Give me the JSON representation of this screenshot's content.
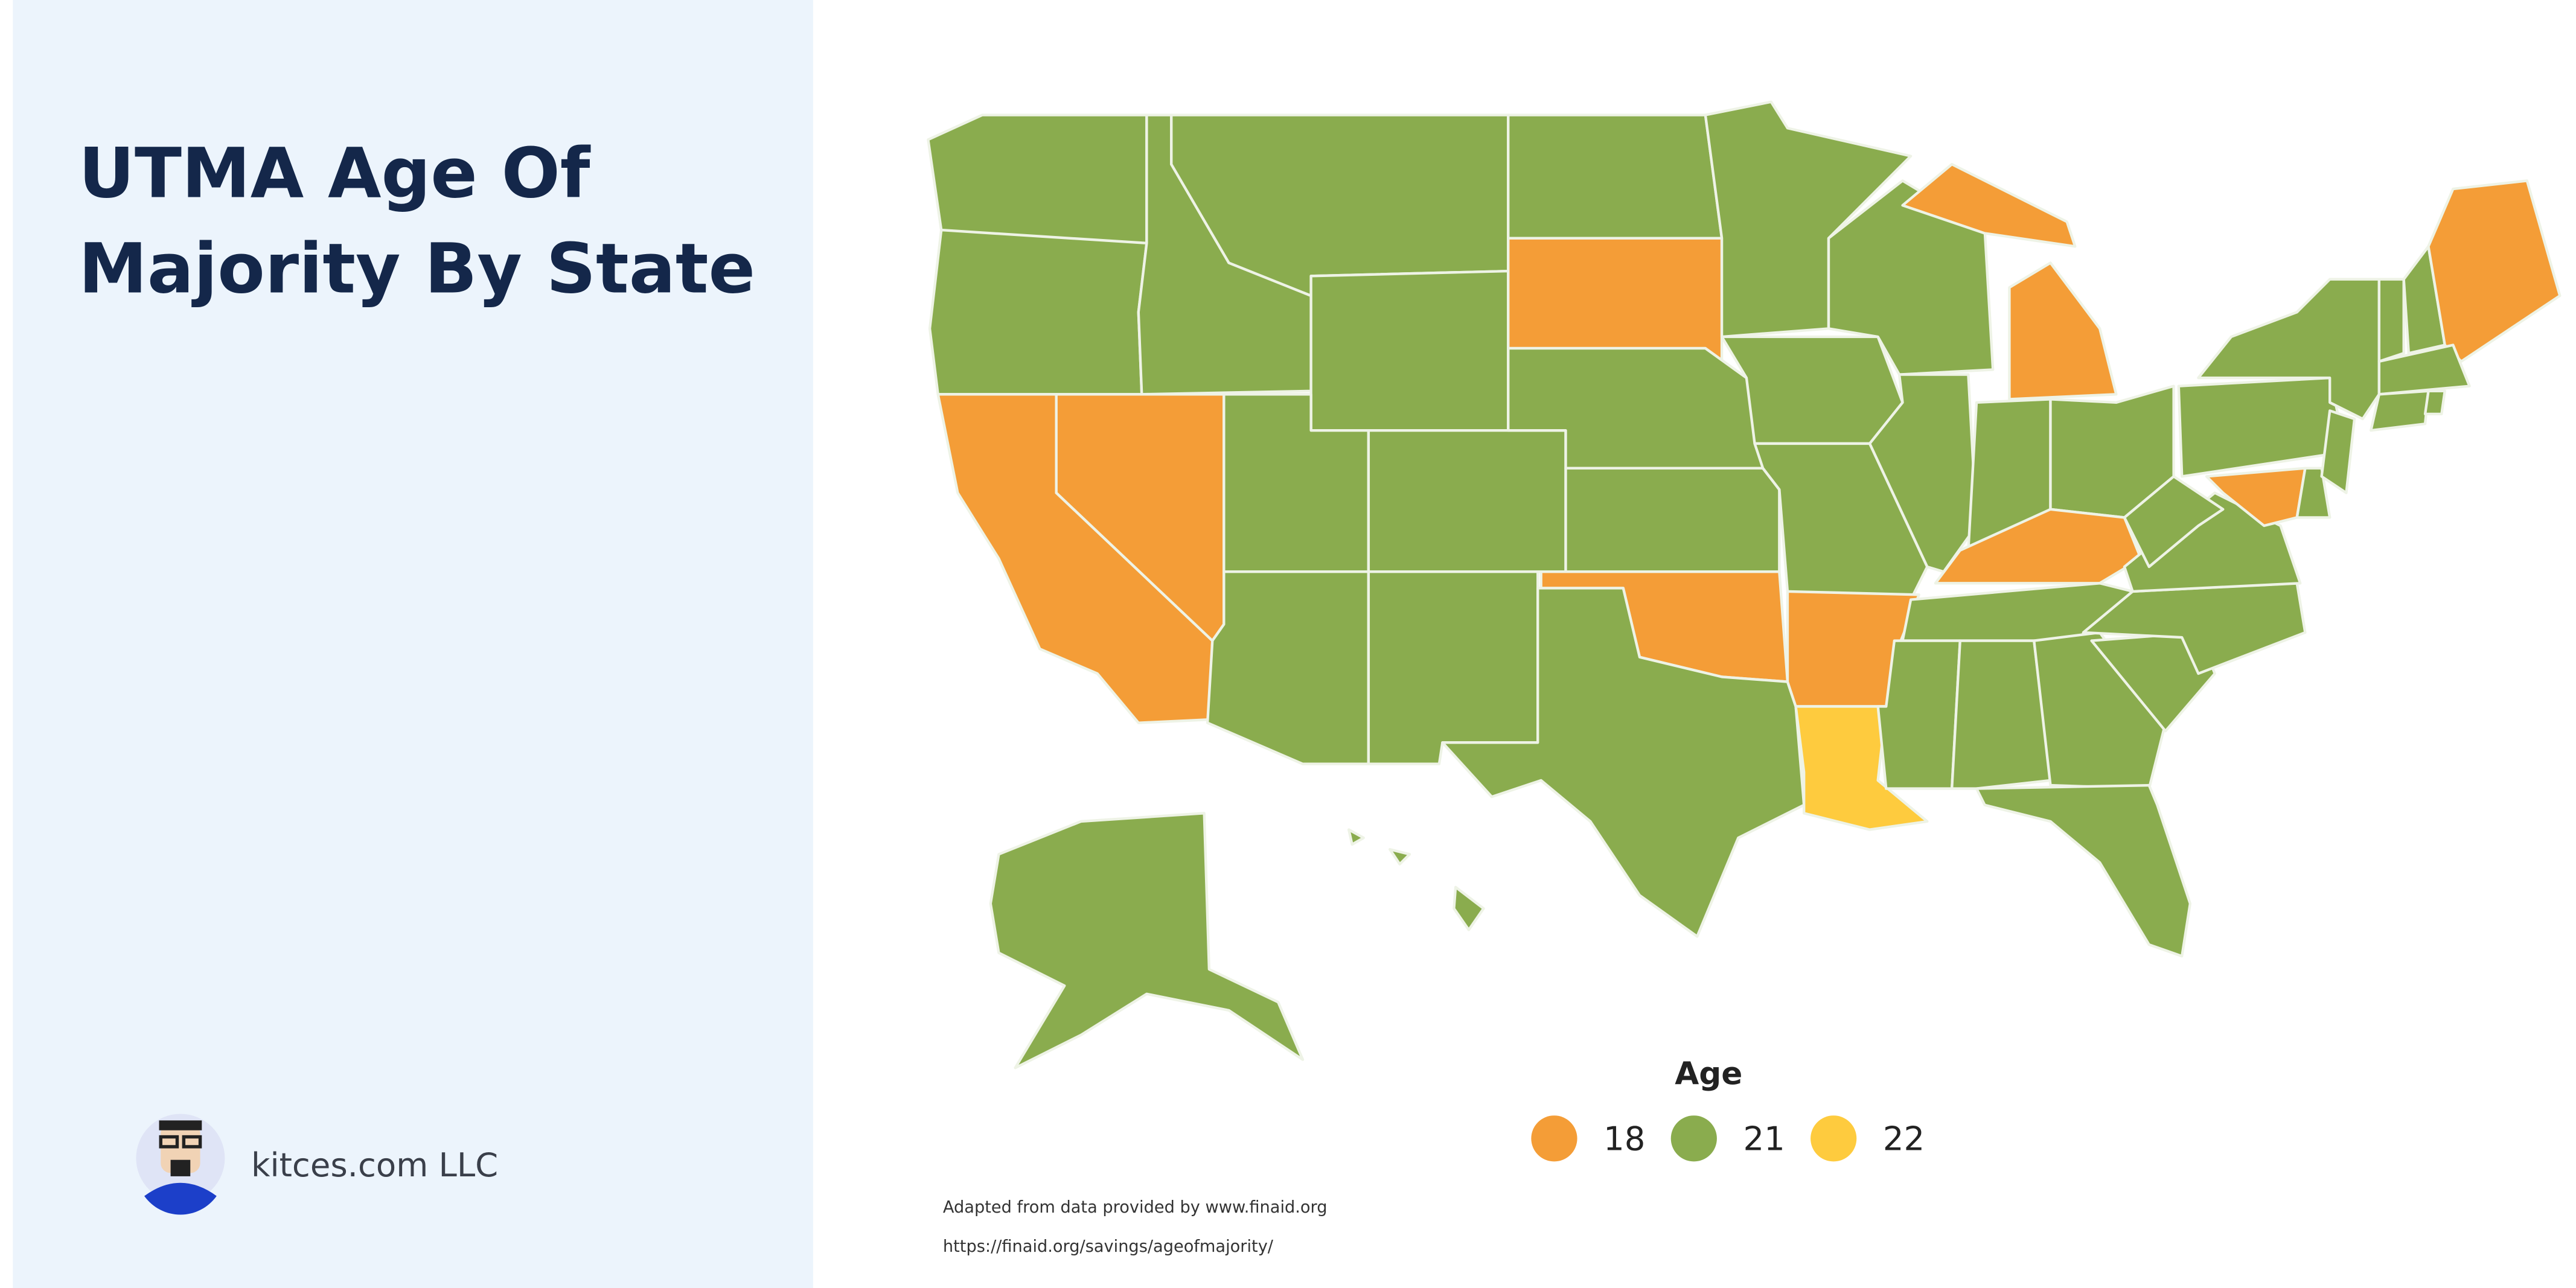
{
  "header": {
    "title_lines": [
      "UTMA Age Of",
      "Majority By State"
    ]
  },
  "footer": {
    "author": "kitces.com LLC"
  },
  "map": {
    "legend": {
      "title": "Age",
      "items": [
        {
          "value": 18,
          "color": "#f49d37"
        },
        {
          "value": 21,
          "color": "#8aac4e"
        },
        {
          "value": 22,
          "color": "#fecb3e"
        }
      ]
    },
    "regions": [
      21,
      21,
      18,
      18,
      21,
      21,
      21,
      21,
      21,
      21,
      21,
      21,
      18,
      21,
      21,
      18,
      21,
      21,
      21,
      21,
      18,
      22,
      21,
      21,
      18,
      21,
      21,
      18,
      21,
      21,
      21,
      21,
      21,
      21,
      21,
      21,
      21,
      21,
      21,
      18,
      21,
      21,
      21,
      21,
      18,
      21,
      21,
      21,
      21,
      21,
      21
    ],
    "sources": [
      "Adapted from data provided by www.finaid.org",
      "https://finaid.org/savings/ageofmajority/"
    ]
  }
}
